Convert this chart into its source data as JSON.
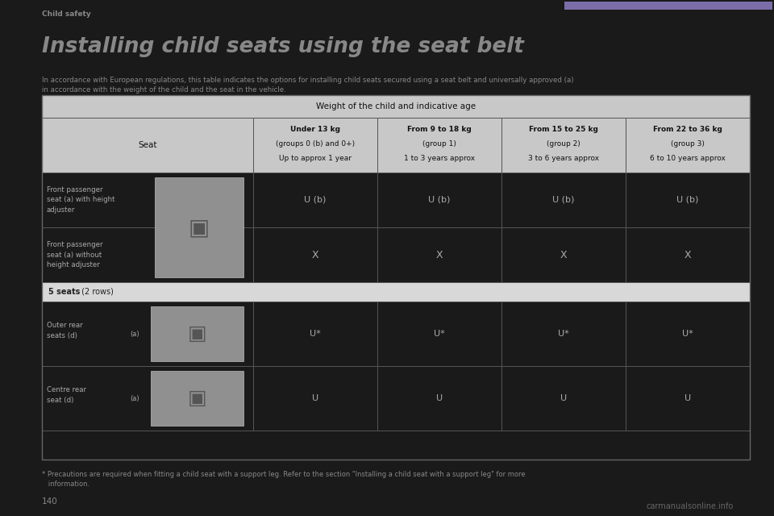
{
  "page_title": "Installing child seats using the seat belt",
  "header_label": "Child safety",
  "header_bar_color": "#7B6EA8",
  "page_number": "140",
  "intro_text": "In accordance with European regulations, this table indicates the options for installing child seats secured using a seat belt and universally approved (a)\nin accordance with the weight of the child and the seat in the vehicle.",
  "table_header_main": "Weight of the child and indicative age",
  "col_header_seat": "Seat",
  "col_headers": [
    "Under 13 kg\n(groups 0 (b) and 0+)\nUp to approx 1 year",
    "From 9 to 18 kg\n(group 1)\n1 to 3 years approx",
    "From 15 to 25 kg\n(group 2)\n3 to 6 years approx",
    "From 22 to 36 kg\n(group 3)\n6 to 10 years approx"
  ],
  "front_row1_label": "Front passenger\nseat (a) with height\nadjuster",
  "front_row1_values": [
    "U (b)",
    "U (b)",
    "U (b)",
    "U (b)"
  ],
  "front_row2_label": "Front passenger\nseat (a) without\nheight adjuster",
  "front_row2_values": [
    "X",
    "X",
    "X",
    "X"
  ],
  "section_label_bold": "5 seats",
  "section_label_normal": " (2 rows)",
  "outer_rear_label": "Outer rear\nseats (d)",
  "outer_rear_suffix": "(a)",
  "outer_rear_values": [
    "U*",
    "U*",
    "U*",
    "U*"
  ],
  "centre_rear_label": "Centre rear\nseat (d)",
  "centre_rear_suffix": "(a)",
  "centre_rear_values": [
    "U",
    "U",
    "U",
    "U"
  ],
  "footnote_line1": "* Precautions are required when fitting a child seat with a support leg. Refer to the section \"Installing a child seat with a support leg\" for more",
  "footnote_line2": "   information.",
  "watermark": "carmanualsonline.info",
  "bg_color": "#1a1a1a",
  "page_bg_color": "#1a1a1a",
  "header_text_color": "#888888",
  "title_color": "#888888",
  "intro_text_color": "#888888",
  "table_outer_border": "#666666",
  "table_header_bg": "#c8c8c8",
  "table_header_fg": "#111111",
  "dark_row_bg": "#1a1a1a",
  "dark_row_fg": "#aaaaaa",
  "section_hdr_bg": "#d8d8d8",
  "section_hdr_fg": "#222222",
  "cell_border_color": "#555555",
  "footnote_color": "#888888",
  "page_num_color": "#888888",
  "watermark_color": "#666666"
}
